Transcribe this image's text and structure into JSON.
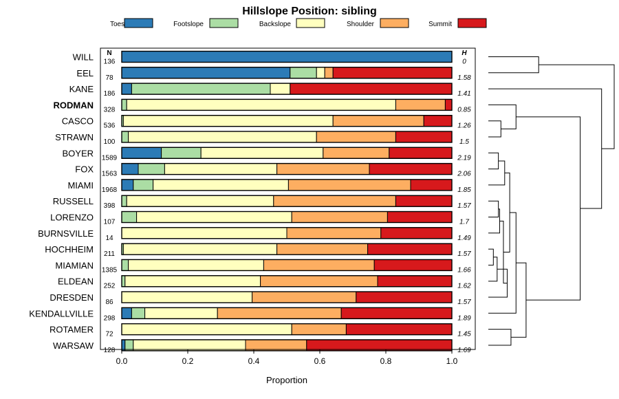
{
  "chart_data": {
    "type": "bar",
    "stacked": true,
    "orientation": "horizontal",
    "title": "Hillslope Position: sibling",
    "xlabel": "Proportion",
    "xlim": [
      0,
      1
    ],
    "xticks": [
      0,
      0.2,
      0.4,
      0.6,
      0.8,
      1
    ],
    "xtick_labels": [
      "0.0",
      "0.2",
      "0.4",
      "0.6",
      "0.8",
      "1.0"
    ],
    "n_header": "N",
    "h_header": "H",
    "highlight": "RODMAN",
    "legend": {
      "placement": "top",
      "entries": [
        {
          "label": "Toeslope",
          "color": "#2c7bb6"
        },
        {
          "label": "Footslope",
          "color": "#abdda4"
        },
        {
          "label": "Backslope",
          "color": "#ffffbf"
        },
        {
          "label": "Shoulder",
          "color": "#fdae61"
        },
        {
          "label": "Summit",
          "color": "#d7191c"
        }
      ]
    },
    "categories": [
      "WILL",
      "EEL",
      "KANE",
      "RODMAN",
      "CASCO",
      "STRAWN",
      "BOYER",
      "FOX",
      "MIAMI",
      "RUSSELL",
      "LORENZO",
      "BURNSVILLE",
      "HOCHHEIM",
      "MIAMIAN",
      "ELDEAN",
      "DRESDEN",
      "KENDALLVILLE",
      "ROTAMER",
      "WARSAW"
    ],
    "n": [
      "136",
      "78",
      "186",
      "328",
      "536",
      "100",
      "1589",
      "1563",
      "1968",
      "398",
      "107",
      "14",
      "211",
      "1385",
      "252",
      "86",
      "298",
      "72",
      "128"
    ],
    "h": [
      "0",
      "1.58",
      "1.41",
      "0.85",
      "1.26",
      "1.5",
      "2.19",
      "2.06",
      "1.85",
      "1.57",
      "1.7",
      "1.49",
      "1.57",
      "1.66",
      "1.62",
      "1.57",
      "1.89",
      "1.45",
      "1.69"
    ],
    "series": [
      {
        "name": "Toeslope",
        "values": [
          1.0,
          0.51,
          0.03,
          0.0,
          0.0,
          0.0,
          0.12,
          0.05,
          0.035,
          0.0,
          0.0,
          0.0,
          0.0,
          0.0,
          0.0,
          0.0,
          0.03,
          0.0,
          0.01
        ]
      },
      {
        "name": "Footslope",
        "values": [
          0.0,
          0.08,
          0.42,
          0.015,
          0.005,
          0.02,
          0.12,
          0.08,
          0.06,
          0.015,
          0.045,
          0.0,
          0.005,
          0.02,
          0.01,
          0.0,
          0.04,
          0.0,
          0.025
        ]
      },
      {
        "name": "Backslope",
        "values": [
          0.0,
          0.025,
          0.06,
          0.815,
          0.635,
          0.57,
          0.37,
          0.34,
          0.41,
          0.445,
          0.47,
          0.5,
          0.465,
          0.41,
          0.41,
          0.395,
          0.22,
          0.515,
          0.34
        ]
      },
      {
        "name": "Shoulder",
        "values": [
          0.0,
          0.025,
          0.0,
          0.15,
          0.275,
          0.24,
          0.2,
          0.28,
          0.37,
          0.37,
          0.29,
          0.285,
          0.275,
          0.335,
          0.355,
          0.315,
          0.375,
          0.165,
          0.185
        ]
      },
      {
        "name": "Summit",
        "values": [
          0.0,
          0.36,
          0.49,
          0.02,
          0.085,
          0.17,
          0.19,
          0.25,
          0.125,
          0.17,
          0.195,
          0.215,
          0.255,
          0.235,
          0.225,
          0.29,
          0.335,
          0.32,
          0.44
        ]
      }
    ],
    "dendrogram": {
      "description": "hierarchical clustering of soil series",
      "merges": [
        {
          "a": 0,
          "b": 1,
          "height": 0.4
        },
        {
          "a": 12,
          "b": 13,
          "height": 0.04
        },
        {
          "a": "m1",
          "b": 14,
          "height": 0.07
        },
        {
          "a": 9,
          "b": 10,
          "height": 0.08
        },
        {
          "a": "m3",
          "b": 11,
          "height": 0.09
        },
        {
          "a": 4,
          "b": 5,
          "height": 0.1
        },
        {
          "a": 17,
          "b": 18,
          "height": 0.18
        },
        {
          "a": "m2",
          "b": 15,
          "height": 0.15
        },
        {
          "a": 6,
          "b": 7,
          "height": 0.08
        },
        {
          "a": "m8",
          "b": 8,
          "height": 0.13
        },
        {
          "a": "m4",
          "b": "m7",
          "height": 0.12
        },
        {
          "a": "m10",
          "b": "m9",
          "height": 0.17
        },
        {
          "a": "m11",
          "b": 16,
          "height": 0.22
        },
        {
          "a": "m12",
          "b": "m6",
          "height": 0.3
        },
        {
          "a": 3,
          "b": "m5",
          "height": 0.22
        },
        {
          "a": "m14",
          "b": "m13",
          "height": 0.73
        },
        {
          "a": 2,
          "b": "m15",
          "height": 0.9
        },
        {
          "a": "m0",
          "b": "m16",
          "height": 1.0
        }
      ]
    }
  }
}
